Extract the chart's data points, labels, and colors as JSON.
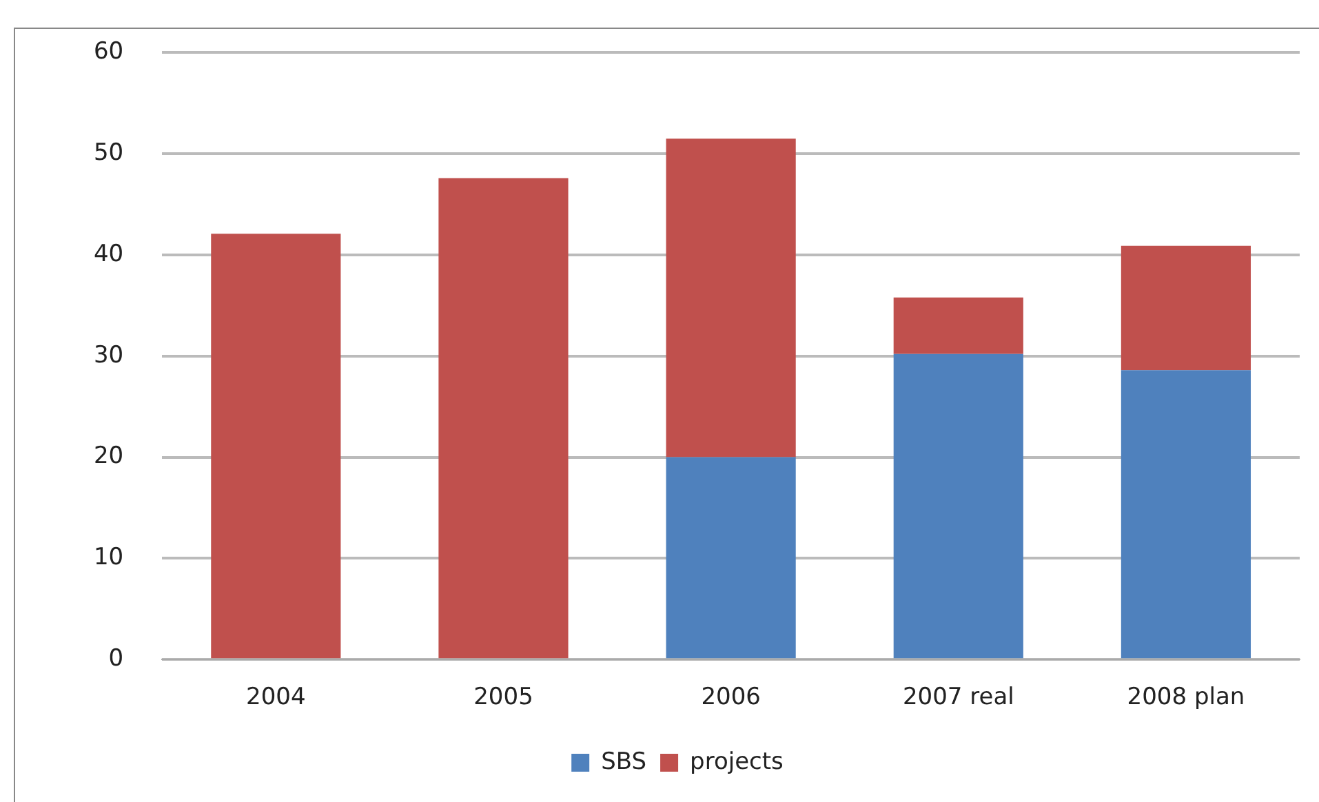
{
  "chart_data": {
    "type": "bar",
    "stacked": true,
    "categories": [
      "2004",
      "2005",
      "2006",
      "2007 real",
      "2008 plan"
    ],
    "series": [
      {
        "name": "SBS",
        "color": "#4f81bd",
        "values": [
          0,
          0,
          20,
          30.2,
          28.6
        ]
      },
      {
        "name": "projects",
        "color": "#c0504d",
        "values": [
          42.1,
          47.6,
          31.5,
          5.6,
          12.3
        ]
      }
    ],
    "ylim": [
      0,
      60
    ],
    "yticks": [
      0,
      10,
      20,
      30,
      40,
      50,
      60
    ],
    "grid": "y",
    "legend": "bottom"
  }
}
